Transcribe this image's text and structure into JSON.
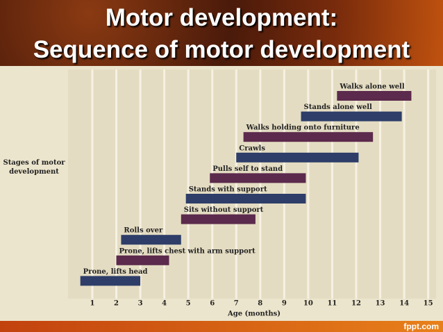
{
  "chart_data": {
    "type": "range-bar",
    "title": "Motor development:",
    "subtitle": "Sequence of motor development",
    "y_label": "Stages of motor development",
    "x_label": "Age (months)",
    "footer": "fppt.com",
    "categories": [
      "Walks alone well",
      "Stands alone well",
      "Walks holding onto furniture",
      "Crawls",
      "Pulls self to stand",
      "Stands with support",
      "Sits without support",
      "Rolls over",
      "Prone, lifts chest with arm support",
      "Prone, lifts head"
    ],
    "start": [
      11.2,
      9.7,
      7.3,
      7.0,
      5.9,
      4.9,
      4.7,
      2.2,
      2.0,
      0.5
    ],
    "end": [
      14.3,
      13.9,
      12.7,
      12.1,
      9.9,
      9.9,
      7.8,
      4.7,
      4.2,
      3.0
    ],
    "colors": [
      "#5b2a4c",
      "#2e3e69",
      "#5b2a4c",
      "#2e3e69",
      "#5b2a4c",
      "#2e3e69",
      "#5b2a4c",
      "#2e3e69",
      "#5b2a4c",
      "#2e3e69"
    ],
    "xlim": [
      0,
      15.3
    ],
    "xticks": [
      1,
      2,
      3,
      4,
      5,
      6,
      7,
      8,
      9,
      10,
      11,
      12,
      13,
      14,
      15
    ],
    "grid": true
  }
}
